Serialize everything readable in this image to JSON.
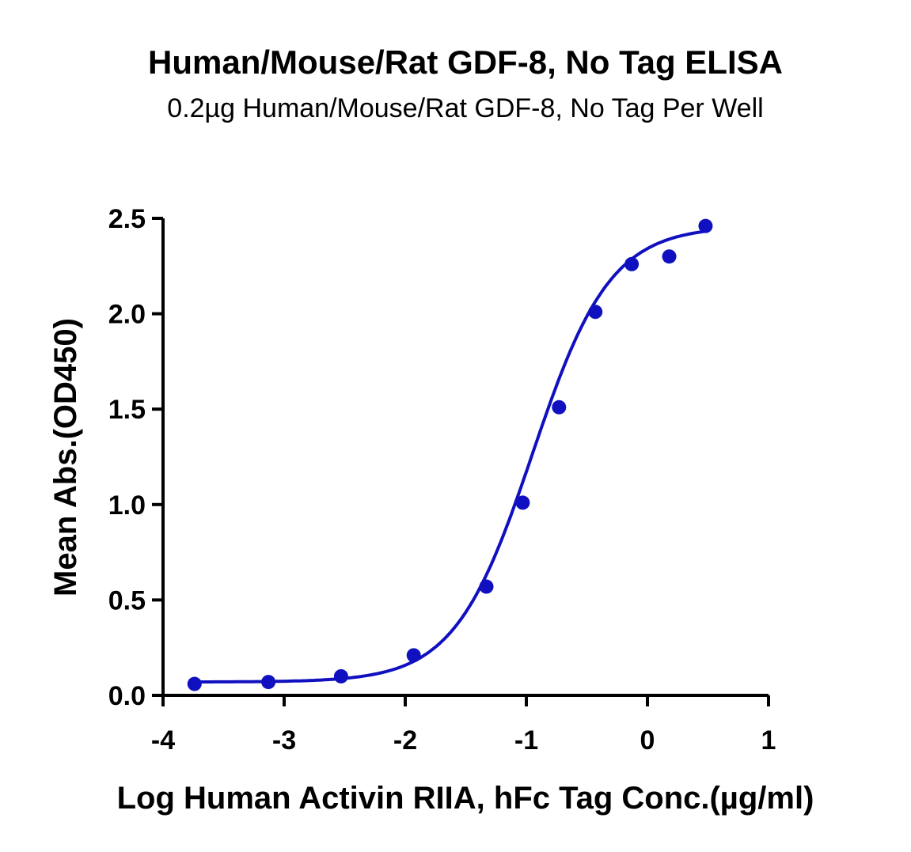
{
  "chart_data": {
    "type": "scatter",
    "title": "Human/Mouse/Rat GDF-8, No Tag ELISA",
    "subtitle": "0.2µg Human/Mouse/Rat GDF-8, No Tag Per Well",
    "xlabel": "Log Human Activin RIIA, hFc Tag Conc.(µg/ml)",
    "ylabel": "Mean Abs.(OD450)",
    "xlim": [
      -4,
      1
    ],
    "ylim": [
      0,
      2.5
    ],
    "xticks": [
      "-4",
      "-3",
      "-2",
      "-1",
      "0",
      "1"
    ],
    "yticks": [
      "0.0",
      "0.5",
      "1.0",
      "1.5",
      "2.0",
      "2.5"
    ],
    "grid": false,
    "color": "#1010c0",
    "series": [
      {
        "x": [
          -3.74,
          -3.13,
          -2.53,
          -1.93,
          -1.33,
          -1.03,
          -0.73,
          -0.43,
          -0.13,
          0.18,
          0.48
        ],
        "values": [
          0.06,
          0.07,
          0.1,
          0.21,
          0.57,
          1.01,
          1.51,
          2.01,
          2.26,
          2.3,
          2.46
        ]
      }
    ],
    "fit": {
      "model": "4PL",
      "bottom": 0.07,
      "top": 2.46,
      "logEC50": -0.95,
      "hill": 1.35,
      "xrange": [
        -3.74,
        0.48
      ]
    }
  }
}
